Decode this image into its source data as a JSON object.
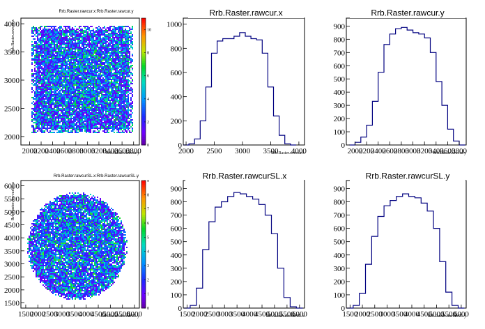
{
  "panels": [
    {
      "kind": "2d",
      "title": "Rrb.Raster.rawcur.x:Rrb.Raster.rawcur.y",
      "xlabel": "Rrb.Raster.rawcur.y",
      "ylabel": "Rrb.Raster.rawcur.x",
      "xticks": [
        "2000",
        "2200",
        "2400",
        "2600",
        "2800",
        "3000",
        "3200",
        "3400",
        "3600",
        "3800"
      ],
      "yticks": [
        "4000",
        "3500",
        "3000",
        "2500",
        "2000"
      ],
      "zticks": [
        "0",
        "2",
        "4",
        "6",
        "8",
        "10"
      ],
      "zmax": 11
    },
    {
      "kind": "1d",
      "title": "Rrb.Raster.rawcur.x",
      "xlabel": "Rrb.Raster.rawcur.x",
      "xticks": [
        "2000",
        "2500",
        "3000",
        "3500",
        "4000"
      ],
      "yticks": [
        "0",
        "200",
        "400",
        "600",
        "800",
        "1000"
      ]
    },
    {
      "kind": "1d",
      "title": "Rrb.Raster.rawcur.y",
      "xlabel": "Rrb.Raster.rawcur.y",
      "xticks": [
        "2000",
        "2200",
        "2400",
        "2600",
        "2800",
        "3000",
        "3200",
        "3400",
        "3600",
        "3800"
      ],
      "yticks": [
        "0",
        "100",
        "200",
        "300",
        "400",
        "500",
        "600",
        "700",
        "800",
        "900"
      ]
    },
    {
      "kind": "2d",
      "title": "Rrb.Raster.rawcurSL.x:Rrb.Raster.rawcurSL.y",
      "xlabel": "Rrb.Raster.rawcurSL.y",
      "ylabel": "Rrb.Raster.rawcurSL.x",
      "xticks": [
        "1500",
        "2000",
        "2500",
        "3000",
        "3500",
        "4000",
        "4500",
        "5000",
        "5500",
        "6000"
      ],
      "yticks": [
        "6000",
        "5500",
        "5000",
        "4500",
        "4000",
        "3500",
        "3000",
        "2500",
        "2000",
        "1500"
      ],
      "zticks": [
        "0",
        "1",
        "2",
        "3",
        "4",
        "5",
        "6",
        "7",
        "8",
        "9"
      ],
      "zmax": 9
    },
    {
      "kind": "1d",
      "title": "Rrb.Raster.rawcurSL.x",
      "xlabel": "Rrb.Raster.rawcurSL.x",
      "xticks": [
        "1500",
        "2000",
        "2500",
        "3000",
        "3500",
        "4000",
        "4500",
        "5000",
        "5500",
        "6000"
      ],
      "yticks": [
        "0",
        "100",
        "200",
        "300",
        "400",
        "500",
        "600",
        "700",
        "800",
        "900"
      ]
    },
    {
      "kind": "1d",
      "title": "Rrb.Raster.rawcurSL.y",
      "xlabel": "Rrb.Raster.rawcurSL.y",
      "xticks": [
        "1500",
        "2000",
        "2500",
        "3000",
        "3500",
        "4000",
        "4500",
        "5000",
        "5500",
        "6000"
      ],
      "yticks": [
        "0",
        "100",
        "200",
        "300",
        "400",
        "500",
        "600",
        "700",
        "800",
        "900"
      ]
    }
  ],
  "chart_data": [
    {
      "type": "heatmap",
      "title": "Rrb.Raster.rawcur.x:Rrb.Raster.rawcur.y",
      "xlabel": "Rrb.Raster.rawcur.y",
      "ylabel": "Rrb.Raster.rawcur.x",
      "xlim": [
        1850,
        3900
      ],
      "ylim": [
        1850,
        4100
      ],
      "zlim": [
        0,
        11
      ],
      "region": {
        "shape": "square",
        "x_range": [
          2050,
          3750
        ],
        "y_range": [
          2100,
          3950
        ]
      },
      "palette": "rainbow"
    },
    {
      "type": "bar",
      "title": "Rrb.Raster.rawcur.x",
      "xlabel": "Rrb.Raster.rawcur.x",
      "xlim": [
        1950,
        4100
      ],
      "ylim": [
        0,
        1050
      ],
      "x": [
        2000,
        2100,
        2200,
        2300,
        2400,
        2500,
        2600,
        2700,
        2800,
        2900,
        3000,
        3100,
        3200,
        3300,
        3400,
        3500,
        3600,
        3700,
        3800,
        3900
      ],
      "values": [
        0,
        10,
        50,
        200,
        480,
        760,
        860,
        880,
        880,
        900,
        930,
        900,
        880,
        870,
        760,
        480,
        240,
        80,
        10,
        0
      ],
      "color": "#000080"
    },
    {
      "type": "bar",
      "title": "Rrb.Raster.rawcur.y",
      "xlabel": "Rrb.Raster.rawcur.y",
      "xlim": [
        1850,
        3920
      ],
      "ylim": [
        0,
        960
      ],
      "x": [
        1950,
        2050,
        2150,
        2250,
        2350,
        2450,
        2550,
        2650,
        2750,
        2850,
        2950,
        3050,
        3150,
        3250,
        3350,
        3450,
        3550,
        3650,
        3750,
        3850
      ],
      "values": [
        0,
        20,
        60,
        150,
        330,
        550,
        760,
        840,
        880,
        890,
        870,
        850,
        840,
        810,
        700,
        480,
        300,
        120,
        30,
        0
      ],
      "color": "#000080"
    },
    {
      "type": "heatmap",
      "title": "Rrb.Raster.rawcurSL.x:Rrb.Raster.rawcurSL.y",
      "xlabel": "Rrb.Raster.rawcurSL.y",
      "ylabel": "Rrb.Raster.rawcurSL.x",
      "xlim": [
        1300,
        6200
      ],
      "ylim": [
        1300,
        6200
      ],
      "zlim": [
        0,
        9
      ],
      "region": {
        "shape": "circle",
        "center": [
          3600,
          3700
        ],
        "radius": 2050
      },
      "palette": "rainbow"
    },
    {
      "type": "bar",
      "title": "Rrb.Raster.rawcurSL.x",
      "xlabel": "Rrb.Raster.rawcurSL.x",
      "xlim": [
        1350,
        6200
      ],
      "ylim": [
        0,
        960
      ],
      "x": [
        1500,
        1750,
        2000,
        2250,
        2500,
        2750,
        3000,
        3250,
        3500,
        3750,
        4000,
        4250,
        4500,
        4750,
        5000,
        5250,
        5500,
        5750,
        6000
      ],
      "values": [
        0,
        20,
        150,
        440,
        650,
        760,
        800,
        840,
        870,
        860,
        840,
        820,
        780,
        700,
        560,
        300,
        80,
        10,
        0
      ],
      "color": "#000080"
    },
    {
      "type": "bar",
      "title": "Rrb.Raster.rawcurSL.y",
      "xlabel": "Rrb.Raster.rawcurSL.y",
      "xlim": [
        1350,
        6200
      ],
      "ylim": [
        0,
        960
      ],
      "x": [
        1500,
        1750,
        2000,
        2250,
        2500,
        2750,
        3000,
        3250,
        3500,
        3750,
        4000,
        4250,
        4500,
        4750,
        5000,
        5250,
        5500,
        5750,
        6000
      ],
      "values": [
        0,
        20,
        110,
        330,
        540,
        690,
        770,
        810,
        840,
        860,
        840,
        830,
        790,
        730,
        600,
        350,
        120,
        20,
        0
      ],
      "color": "#000080"
    }
  ]
}
